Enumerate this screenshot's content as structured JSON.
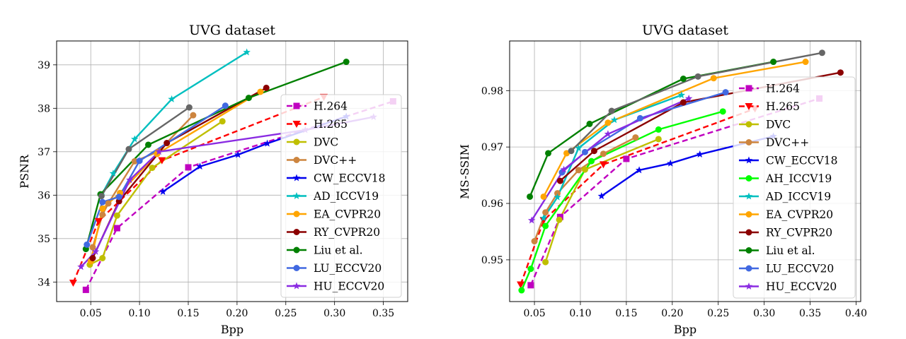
{
  "chart_data": [
    {
      "type": "line",
      "title": "UVG dataset",
      "xlabel": "Bpp",
      "ylabel": "PSNR",
      "xlim": [
        0.015,
        0.375
      ],
      "ylim": [
        33.55,
        39.55
      ],
      "xticks": [
        0.05,
        0.1,
        0.15,
        0.2,
        0.25,
        0.3,
        0.35
      ],
      "xtick_labels": [
        "0.05",
        "0.10",
        "0.15",
        "0.20",
        "0.25",
        "0.30",
        "0.35"
      ],
      "yticks": [
        34,
        35,
        36,
        37,
        38,
        39
      ],
      "ytick_labels": [
        "34",
        "35",
        "36",
        "37",
        "38",
        "39"
      ],
      "grid": true,
      "legend_position": "right",
      "series": [
        {
          "name": "H.264",
          "color": "#c000c0",
          "marker": "square",
          "dashed": true,
          "x": [
            0.045,
            0.077,
            0.15,
            0.36
          ],
          "y": [
            33.82,
            35.24,
            36.64,
            38.16
          ]
        },
        {
          "name": "H.265",
          "color": "#ff0000",
          "marker": "triangle-down",
          "dashed": true,
          "x": [
            0.032,
            0.058,
            0.123,
            0.289
          ],
          "y": [
            33.98,
            35.4,
            36.8,
            38.26
          ]
        },
        {
          "name": "DVC",
          "color": "#bfbf00",
          "marker": "circle",
          "dashed": false,
          "x": [
            0.049,
            0.062,
            0.077,
            0.113,
            0.185
          ],
          "y": [
            34.4,
            34.55,
            35.53,
            36.63,
            37.7
          ]
        },
        {
          "name": "DVC++",
          "color": "#cd853f",
          "marker": "circle",
          "dashed": false,
          "x": [
            0.052,
            0.062,
            0.068,
            0.095,
            0.119,
            0.155
          ],
          "y": [
            34.8,
            35.55,
            35.81,
            36.78,
            37.0,
            37.84
          ]
        },
        {
          "name": "CW_ECCV18",
          "color": "#0000ee",
          "marker": "star",
          "dashed": false,
          "x": [
            0.124,
            0.162,
            0.201,
            0.231,
            0.312
          ],
          "y": [
            36.08,
            36.66,
            36.93,
            37.19,
            37.81
          ]
        },
        {
          "name": "AD_ICCV19",
          "color": "#00bfbf",
          "marker": "star",
          "dashed": false,
          "x": [
            0.061,
            0.073,
            0.095,
            0.133,
            0.21
          ],
          "y": [
            36.0,
            36.5,
            37.29,
            38.21,
            39.29
          ]
        },
        {
          "name": "EA_CVPR20",
          "color": "#ffa500",
          "marker": "circle",
          "dashed": false,
          "x": [
            0.05,
            0.062,
            0.08,
            0.118,
            0.224
          ],
          "y": [
            34.48,
            35.69,
            36.05,
            36.95,
            38.38
          ]
        },
        {
          "name": "RY_CVPR20",
          "color": "#8b0000",
          "marker": "circle",
          "dashed": false,
          "x": [
            0.052,
            0.079,
            0.128,
            0.23
          ],
          "y": [
            34.55,
            35.86,
            37.2,
            38.47
          ]
        },
        {
          "name": "Liu et al.",
          "color": "#008000",
          "marker": "circle",
          "dashed": false,
          "x": [
            0.045,
            0.06,
            0.109,
            0.212,
            0.312
          ],
          "y": [
            34.76,
            36.02,
            37.16,
            38.24,
            39.07
          ]
        },
        {
          "name": "LU_ECCV20",
          "color": "#4169e1",
          "marker": "circle",
          "dashed": false,
          "x": [
            0.046,
            0.062,
            0.079,
            0.1,
            0.188
          ],
          "y": [
            34.86,
            35.84,
            35.96,
            36.79,
            38.06
          ]
        },
        {
          "name": "HU_ECCV20",
          "color": "#8a2be2",
          "marker": "star",
          "dashed": false,
          "x": [
            0.04,
            0.055,
            0.09,
            0.12,
            0.27,
            0.34
          ],
          "y": [
            34.35,
            34.7,
            36.35,
            37.0,
            37.5,
            37.8
          ]
        },
        {
          "name": "gray",
          "color": "#666666",
          "marker": "circle",
          "dashed": false,
          "in_legend": false,
          "x": [
            0.061,
            0.089,
            0.151
          ],
          "y": [
            35.98,
            37.06,
            38.02
          ]
        }
      ]
    },
    {
      "type": "line",
      "title": "UVG dataset",
      "xlabel": "Bpp",
      "ylabel": "MS-SSIM",
      "xlim": [
        0.023,
        0.405
      ],
      "ylim": [
        0.9426,
        0.9888
      ],
      "xticks": [
        0.05,
        0.1,
        0.15,
        0.2,
        0.25,
        0.3,
        0.35,
        0.4
      ],
      "xtick_labels": [
        "0.05",
        "0.10",
        "0.15",
        "0.20",
        "0.25",
        "0.30",
        "0.35",
        "0.40"
      ],
      "yticks": [
        0.95,
        0.96,
        0.97,
        0.98
      ],
      "ytick_labels": [
        "0.95",
        "0.96",
        "0.97",
        "0.98"
      ],
      "grid": true,
      "legend_position": "right",
      "series": [
        {
          "name": "H.264",
          "color": "#c000c0",
          "marker": "square",
          "dashed": true,
          "x": [
            0.046,
            0.078,
            0.15,
            0.36
          ],
          "y": [
            0.9455,
            0.9576,
            0.9679,
            0.9786
          ]
        },
        {
          "name": "H.265",
          "color": "#ff0000",
          "marker": "triangle-down",
          "dashed": true,
          "x": [
            0.035,
            0.06,
            0.125,
            0.29
          ],
          "y": [
            0.9456,
            0.957,
            0.9669,
            0.9768
          ]
        },
        {
          "name": "DVC",
          "color": "#bfbf00",
          "marker": "circle",
          "dashed": false,
          "x": [
            0.062,
            0.077,
            0.105,
            0.185
          ],
          "y": [
            0.9496,
            0.9571,
            0.966,
            0.9714
          ]
        },
        {
          "name": "DVC++",
          "color": "#cd853f",
          "marker": "circle",
          "dashed": false,
          "x": [
            0.05,
            0.062,
            0.075,
            0.098,
            0.125,
            0.16
          ],
          "y": [
            0.9533,
            0.9584,
            0.9618,
            0.9659,
            0.9688,
            0.9717
          ]
        },
        {
          "name": "CW_ECCV18",
          "color": "#0000ee",
          "marker": "star",
          "dashed": false,
          "x": [
            0.123,
            0.164,
            0.198,
            0.23,
            0.31
          ],
          "y": [
            0.9613,
            0.9659,
            0.9671,
            0.9687,
            0.9719
          ]
        },
        {
          "name": "AH_ICCV19",
          "color": "#00ff00",
          "marker": "circle",
          "dashed": false,
          "x": [
            0.036,
            0.046,
            0.062,
            0.112,
            0.185,
            0.255
          ],
          "y": [
            0.9446,
            0.9484,
            0.956,
            0.9675,
            0.9731,
            0.9763
          ]
        },
        {
          "name": "AD_ICCV19",
          "color": "#00bfbf",
          "marker": "star",
          "dashed": false,
          "x": [
            0.06,
            0.075,
            0.098,
            0.137,
            0.21
          ],
          "y": [
            0.9574,
            0.9611,
            0.9698,
            0.9748,
            0.9792
          ]
        },
        {
          "name": "EA_CVPR20",
          "color": "#ffa500",
          "marker": "circle",
          "dashed": false,
          "x": [
            0.06,
            0.085,
            0.13,
            0.245,
            0.345
          ],
          "y": [
            0.9612,
            0.9689,
            0.9743,
            0.9822,
            0.9851
          ]
        },
        {
          "name": "RY_CVPR20",
          "color": "#8b0000",
          "marker": "circle",
          "dashed": false,
          "x": [
            0.078,
            0.115,
            0.212,
            0.383
          ],
          "y": [
            0.964,
            0.9693,
            0.9779,
            0.9832
          ]
        },
        {
          "name": "Liu et al.",
          "color": "#008000",
          "marker": "circle",
          "dashed": false,
          "x": [
            0.045,
            0.065,
            0.11,
            0.212,
            0.31
          ],
          "y": [
            0.9612,
            0.9689,
            0.9741,
            0.9821,
            0.9851
          ]
        },
        {
          "name": "LU_ECCV20",
          "color": "#4169e1",
          "marker": "circle",
          "dashed": false,
          "x": [
            0.08,
            0.105,
            0.165,
            0.258
          ],
          "y": [
            0.9655,
            0.9691,
            0.9751,
            0.9797
          ]
        },
        {
          "name": "HU_ECCV20",
          "color": "#8a2be2",
          "marker": "star",
          "dashed": false,
          "x": [
            0.047,
            0.082,
            0.13,
            0.218
          ],
          "y": [
            0.957,
            0.966,
            0.9723,
            0.9786
          ]
        },
        {
          "name": "gray",
          "color": "#666666",
          "marker": "circle",
          "dashed": false,
          "in_legend": false,
          "x": [
            0.09,
            0.134,
            0.228,
            0.363
          ],
          "y": [
            0.9693,
            0.9764,
            0.9825,
            0.9867
          ]
        }
      ]
    }
  ]
}
